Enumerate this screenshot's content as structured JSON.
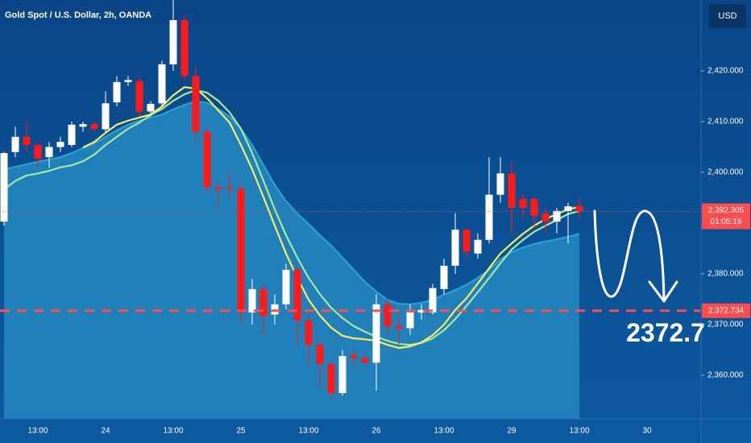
{
  "chart_data": {
    "type": "candlestick",
    "title": "Gold Spot / U.S. Dollar, 2h, OANDA",
    "currency": "USD",
    "categories": [
      null,
      null,
      null,
      "13:00",
      null,
      null,
      null,
      null,
      null,
      "24",
      null,
      null,
      null,
      null,
      null,
      "13:00",
      null,
      null,
      null,
      null,
      null,
      "25",
      null,
      null,
      null,
      null,
      null,
      "13:00",
      null,
      null,
      null,
      null,
      null,
      "26",
      null,
      null,
      null,
      null,
      null,
      "13:00",
      null,
      null,
      null,
      null,
      null,
      "29",
      null,
      null,
      null,
      null,
      null,
      "13:00",
      null,
      null,
      null,
      null,
      null,
      "30",
      null,
      null,
      null,
      null
    ],
    "open": [
      2390.3,
      2404,
      2407,
      2405.4,
      2403,
      2405,
      2405.4,
      2409,
      2409.5,
      2408.5,
      2413.8,
      2417.8,
      2418,
      2412,
      2413.6,
      2421.3,
      2430,
      2419,
      2408,
      2397.1,
      2397,
      2396.7,
      2372.4,
      2377,
      2372,
      2374,
      2380.8,
      2370.8,
      2366,
      2362.2,
      2356.5,
      2364,
      2363.4,
      2362.5,
      2374,
      2369.7,
      2369.3,
      2372.4,
      2372.4,
      2377,
      2381.6,
      2388.7,
      2384,
      2386.7,
      2395.6,
      2399.8,
      2394.8,
      2394.8,
      2391.9,
      2390.3,
      2392.4,
      2393.4,
      null,
      null,
      null,
      null,
      null,
      null,
      null,
      null,
      null,
      null
    ],
    "high": [
      2404,
      2409,
      2410,
      2406,
      2406,
      2407,
      2410,
      2410,
      2410,
      2416,
      2419,
      2419,
      2419,
      2414,
      2422,
      2434,
      2431,
      2421,
      2409,
      2398,
      2400,
      2398,
      2379,
      2378,
      2376,
      2382,
      2381,
      2372,
      2367,
      2363,
      2365,
      2365,
      2364,
      2376,
      2375,
      2372,
      2374,
      2374,
      2378,
      2383,
      2392,
      2389,
      2388,
      2403,
      2403,
      2402,
      2396,
      2395,
      2393,
      2393,
      2394,
      2395,
      null,
      null,
      null,
      null,
      null,
      null,
      null,
      null,
      null,
      null
    ],
    "low": [
      2389.5,
      2403,
      2404,
      2401,
      2401,
      2404,
      2405,
      2408,
      2408,
      2408,
      2413,
      2417,
      2411,
      2411,
      2413,
      2420,
      2418,
      2406,
      2396,
      2393,
      2395,
      2370,
      2370,
      2368,
      2370,
      2373,
      2366,
      2362,
      2358,
      2355,
      2356,
      2362,
      2362,
      2357,
      2368,
      2366,
      2368,
      2371,
      2372,
      2376,
      2380,
      2383,
      2383,
      2386,
      2394,
      2388,
      2391,
      2389,
      2388,
      2388,
      2386,
      2391,
      null,
      null,
      null,
      null,
      null,
      null,
      null,
      null,
      null,
      null
    ],
    "close": [
      2403.8,
      2407,
      2405.4,
      2402.7,
      2405,
      2406,
      2409.4,
      2409.5,
      2408.6,
      2413.6,
      2417.8,
      2418.2,
      2412,
      2413.5,
      2421.3,
      2430,
      2419,
      2408,
      2397.1,
      2396.7,
      2396.7,
      2372.4,
      2377,
      2371.7,
      2374,
      2380.8,
      2370.8,
      2366,
      2362.2,
      2356.5,
      2363.8,
      2363.4,
      2362.5,
      2374,
      2369.7,
      2369.2,
      2372.4,
      2372.9,
      2377.2,
      2381.6,
      2388.7,
      2384.4,
      2386.7,
      2395.6,
      2399.8,
      2393,
      2393,
      2391.4,
      2390.3,
      2392.4,
      2393.3,
      2392.3,
      null,
      null,
      null,
      null,
      null,
      null,
      null,
      null,
      null,
      null
    ],
    "up_color": "#ffffff",
    "down_color": "#ff1a1a",
    "overlays": [
      {
        "type": "area",
        "color": "#2aa6d6",
        "fill": "#1f80ba",
        "values": [
          2400.6,
          2401.1,
          2401.6,
          2402.1,
          2402.5,
          2403.0,
          2403.8,
          2404.8,
          2405.7,
          2407.0,
          2408.3,
          2409.4,
          2410.2,
          2410.8,
          2411.4,
          2412.4,
          2413.3,
          2414.0,
          2413.7,
          2412.5,
          2411.0,
          2408.6,
          2405.4,
          2401.4,
          2397.5,
          2394.3,
          2391.9,
          2389.8,
          2387.6,
          2385.6,
          2383.2,
          2380.8,
          2378.4,
          2376.5,
          2374.9,
          2374.1,
          2374.0,
          2374.3,
          2374.9,
          2375.9,
          2376.8,
          2377.9,
          2379.2,
          2380.8,
          2382.9,
          2384.3,
          2385.2,
          2385.9,
          2386.4,
          2386.8,
          2387.3,
          2387.9,
          null,
          null,
          null,
          null,
          null,
          null,
          null,
          null,
          null,
          null
        ]
      },
      {
        "type": "line",
        "color": "#a8e89a",
        "values": [
          2396.7,
          2398.3,
          2399.4,
          2399.8,
          2400.3,
          2401.0,
          2401.4,
          2402.2,
          2403.5,
          2405.4,
          2407.0,
          2408.6,
          2409.8,
          2411.3,
          2412.5,
          2414.1,
          2415.4,
          2416.2,
          2415.7,
          2414.1,
          2411.8,
          2408.6,
          2403.8,
          2398.3,
          2392.7,
          2387.6,
          2383.2,
          2379.2,
          2376.0,
          2373.3,
          2371.3,
          2369.7,
          2368.6,
          2367.6,
          2366.8,
          2366.2,
          2366.0,
          2366.4,
          2367.3,
          2368.9,
          2371.1,
          2373.7,
          2376.4,
          2379.2,
          2382.1,
          2384.8,
          2386.7,
          2388.3,
          2389.5,
          2390.6,
          2391.8,
          2392.4,
          null,
          null,
          null,
          null,
          null,
          null,
          null,
          null,
          null,
          null
        ]
      },
      {
        "type": "line",
        "color": "#f7ec62",
        "values": [
          null,
          null,
          null,
          null,
          null,
          null,
          null,
          2404.9,
          2406.0,
          2407.8,
          2409.4,
          2410.2,
          2410.8,
          2411.4,
          2413.0,
          2415.2,
          2416.8,
          2416.5,
          2414.6,
          2412.2,
          2409.8,
          2405.4,
          2400.6,
          2395.1,
          2389.5,
          2384.0,
          2379.2,
          2374.9,
          2371.8,
          2369.4,
          2367.8,
          2367.3,
          2367.1,
          2366.8,
          2366.0,
          2365.4,
          2365.7,
          2366.5,
          2367.9,
          2370.0,
          2372.9,
          2375.2,
          2378.1,
          2381.1,
          2384.0,
          2386.0,
          2387.9,
          2389.5,
          2390.8,
          2391.8,
          2392.7,
          2393.2,
          null,
          null,
          null,
          null,
          null,
          null,
          null,
          null,
          null,
          null
        ]
      }
    ],
    "ylim": [
      2351.43,
      2433.97
    ],
    "yticks": [
      {
        "value": 2360,
        "label": "2,360.000"
      },
      {
        "value": 2370,
        "label": "2,370.000"
      },
      {
        "value": 2380,
        "label": "2,380.000"
      },
      {
        "value": 2400,
        "label": "2,400.000"
      },
      {
        "value": 2410,
        "label": "2,410.000"
      },
      {
        "value": 2420,
        "label": "2,420.000"
      }
    ],
    "last_price": {
      "value": 2392.305,
      "label": "2,392.305"
    },
    "countdown": "01:05:19",
    "target": {
      "value": 2372.734,
      "label": "2,372.734"
    },
    "annotation": "2372.7",
    "line_color": "#ff4d4d"
  }
}
